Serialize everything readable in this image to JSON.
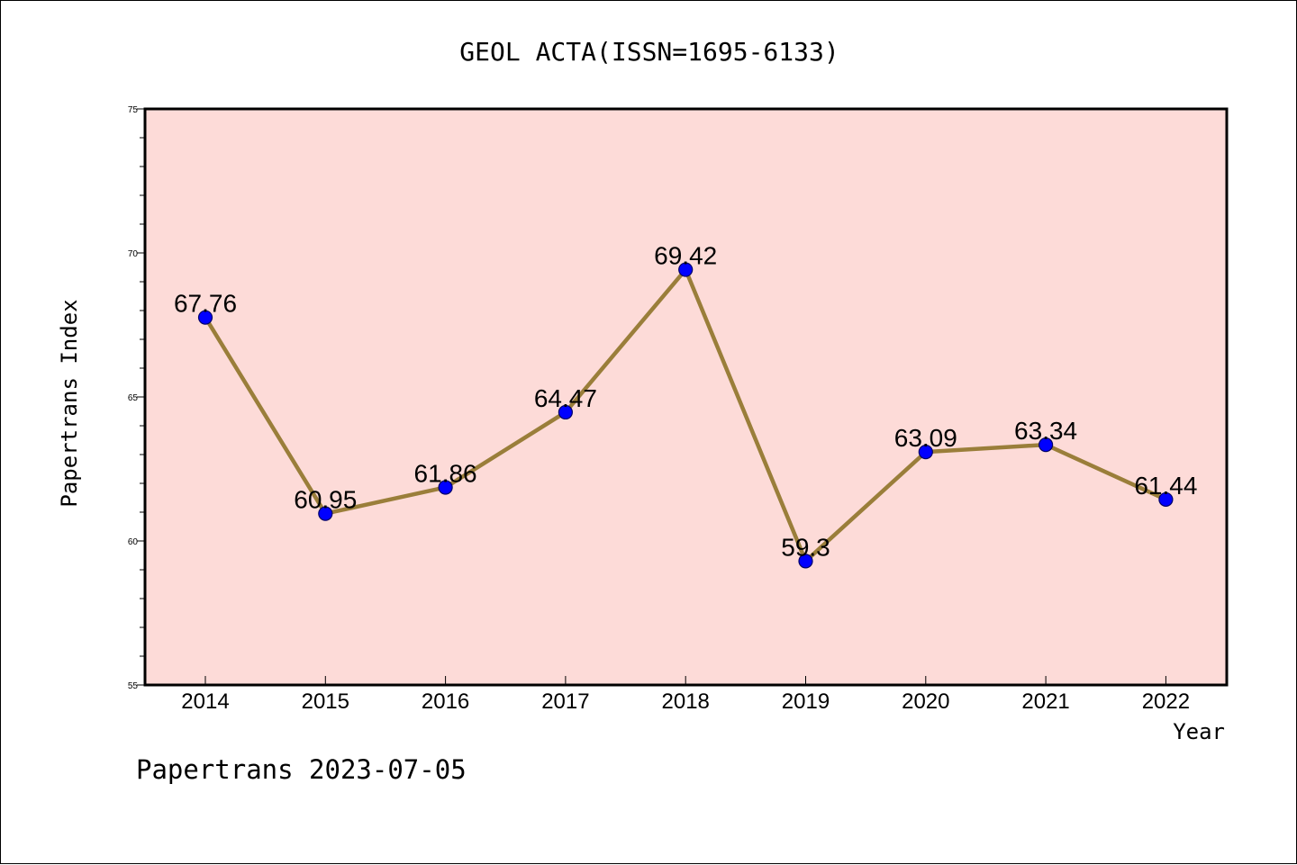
{
  "chart_data": {
    "type": "line",
    "title": "GEOL ACTA(ISSN=1695-6133)",
    "xlabel": "Year",
    "ylabel": "Papertrans Index",
    "footer": "Papertrans 2023-07-05",
    "categories": [
      "2014",
      "2015",
      "2016",
      "2017",
      "2018",
      "2019",
      "2020",
      "2021",
      "2022"
    ],
    "values": [
      67.76,
      60.95,
      61.86,
      64.47,
      69.42,
      59.3,
      63.09,
      63.34,
      61.44
    ],
    "data_labels": [
      "67.76",
      "60.95",
      "61.86",
      "64.47",
      "69.42",
      "59.3",
      "63.09",
      "63.34",
      "61.44"
    ],
    "ylim": [
      55,
      75
    ],
    "yticks": [
      "55",
      "60",
      "65",
      "70",
      "75"
    ],
    "grid": false,
    "colors": {
      "plot_background": "#fddbd8",
      "line": "#9a7e3a",
      "marker": "#0000ff",
      "marker_edge": "#000066",
      "axis": "#000000"
    }
  }
}
